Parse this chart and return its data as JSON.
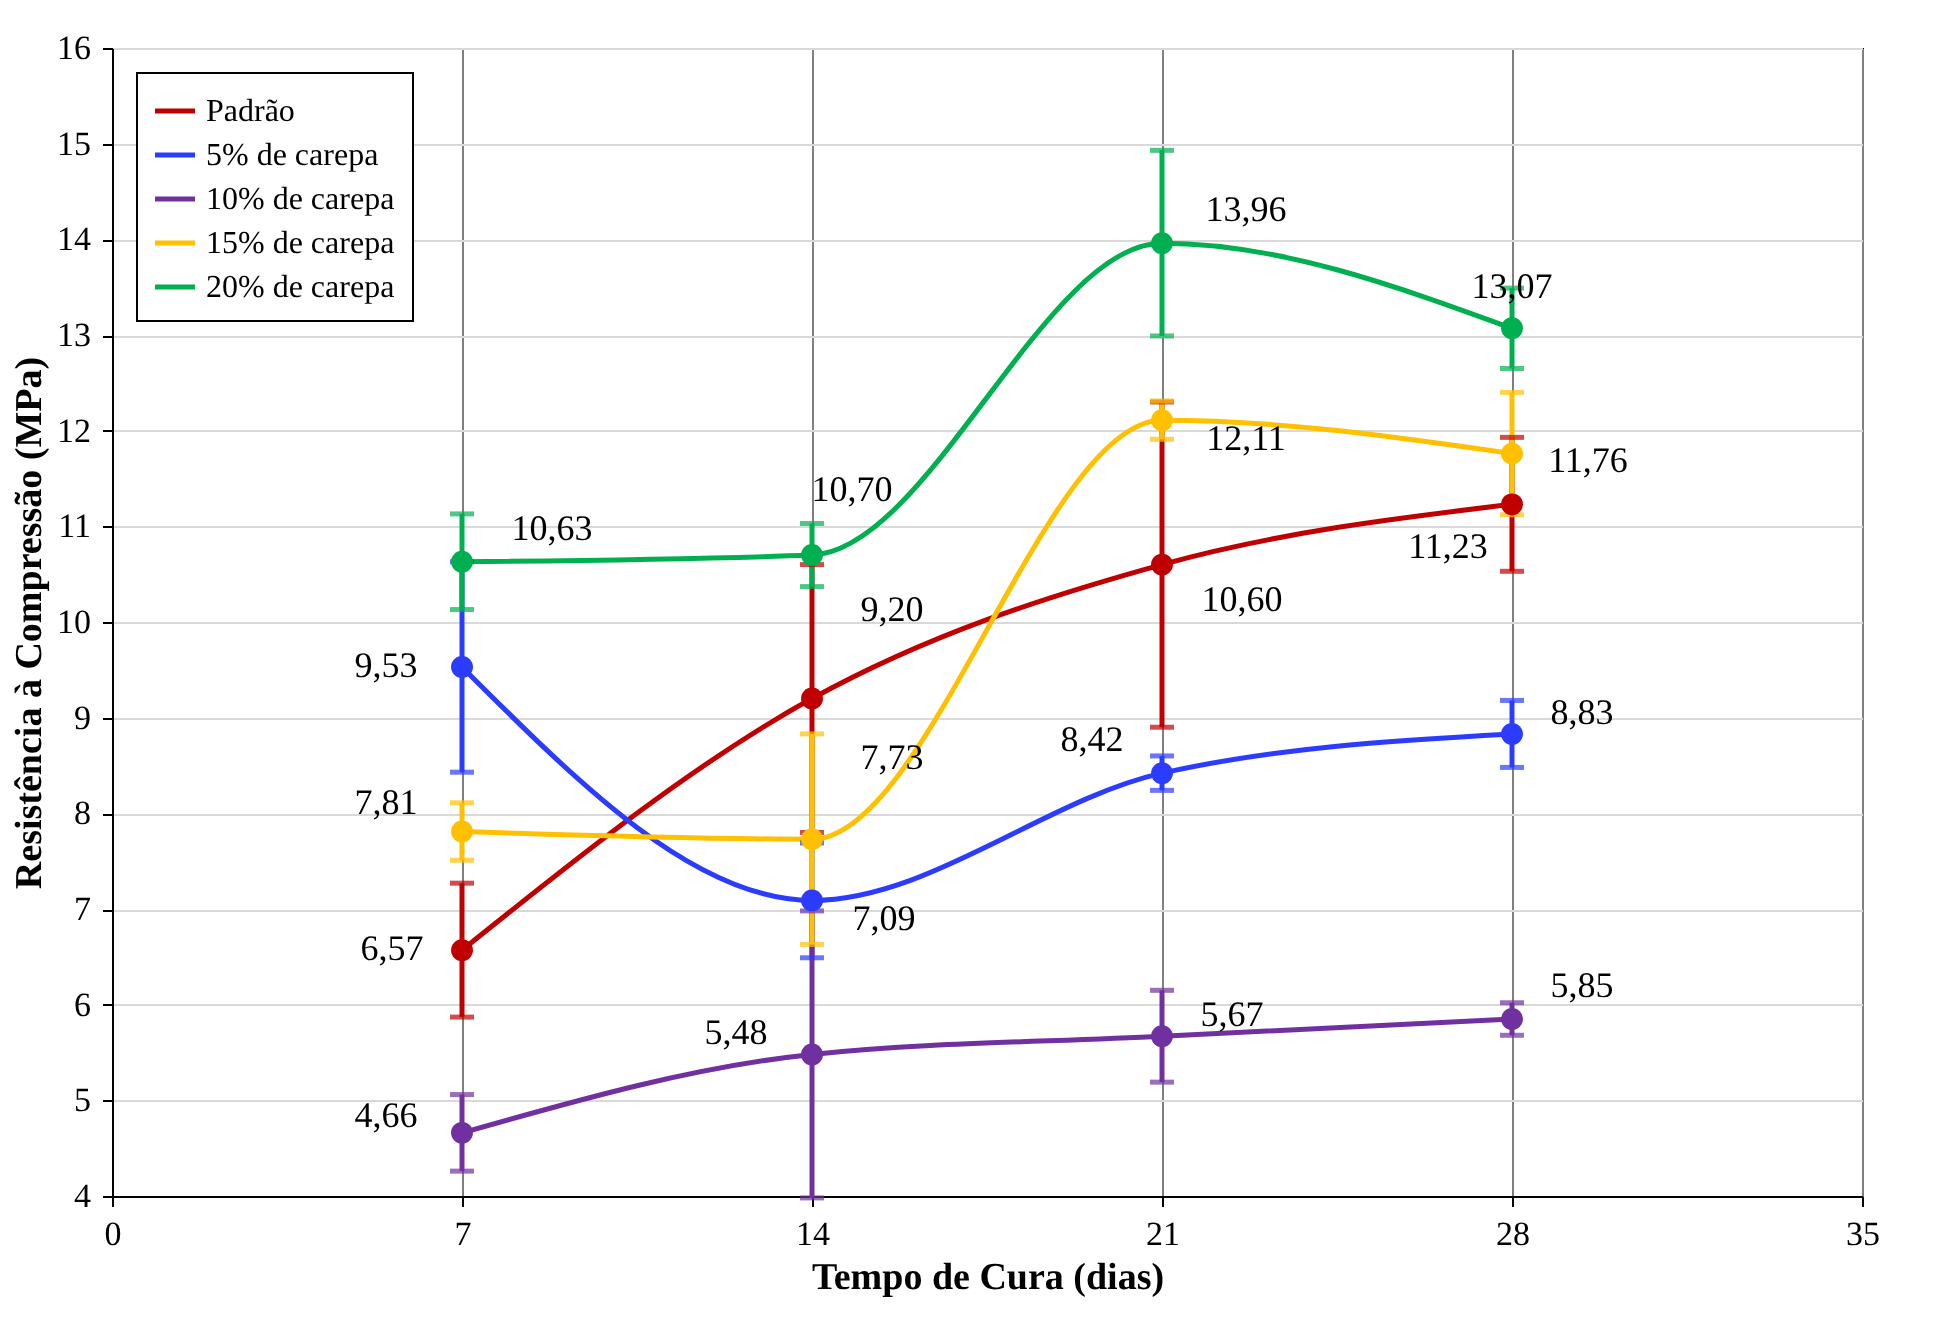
{
  "chart_data": {
    "type": "line",
    "xlabel": "Tempo de Cura (dias)",
    "ylabel": "Resistência à Compressão (MPa)",
    "x": [
      7,
      14,
      21,
      28
    ],
    "series": [
      {
        "name": "Padrão",
        "color": "#c00000",
        "values": [
          6.57,
          9.2,
          10.6,
          11.23
        ],
        "errors": [
          0.7,
          1.4,
          1.7,
          0.7
        ],
        "value_labels": [
          "6,57",
          "9,20",
          "10,60",
          "11,23"
        ]
      },
      {
        "name": "5% de carepa",
        "color": "#2c3cff",
        "values": [
          9.53,
          7.09,
          8.42,
          8.83
        ],
        "errors": [
          1.1,
          0.6,
          0.18,
          0.35
        ],
        "value_labels": [
          "9,53",
          "7,09",
          "8,42",
          "8,83"
        ]
      },
      {
        "name": "10% de carepa",
        "color": "#7030a0",
        "values": [
          4.66,
          5.48,
          5.67,
          5.85
        ],
        "errors": [
          0.4,
          1.5,
          0.48,
          0.17
        ],
        "value_labels": [
          "4,66",
          "5,48",
          "5,67",
          "5,85"
        ]
      },
      {
        "name": "15% de carepa",
        "color": "#ffc000",
        "values": [
          7.81,
          7.73,
          12.11,
          11.76
        ],
        "errors": [
          0.3,
          1.1,
          0.2,
          0.64
        ],
        "value_labels": [
          "7,81",
          "7,73",
          "12,11",
          "11,76"
        ]
      },
      {
        "name": "20% de carepa",
        "color": "#00b050",
        "values": [
          10.63,
          10.7,
          13.96,
          13.07
        ],
        "errors": [
          0.5,
          0.33,
          0.97,
          0.42
        ],
        "value_labels": [
          "10,63",
          "10,70",
          "13,96",
          "13,07"
        ]
      }
    ],
    "xlim": [
      0,
      35
    ],
    "xticks": [
      0,
      7,
      14,
      21,
      28,
      35
    ],
    "ylim": [
      4,
      16
    ],
    "yticks": [
      4,
      5,
      6,
      7,
      8,
      9,
      10,
      11,
      12,
      13,
      14,
      15,
      16
    ],
    "grid": true,
    "legend": "top left",
    "marker": "circle",
    "line_style": "solid"
  }
}
